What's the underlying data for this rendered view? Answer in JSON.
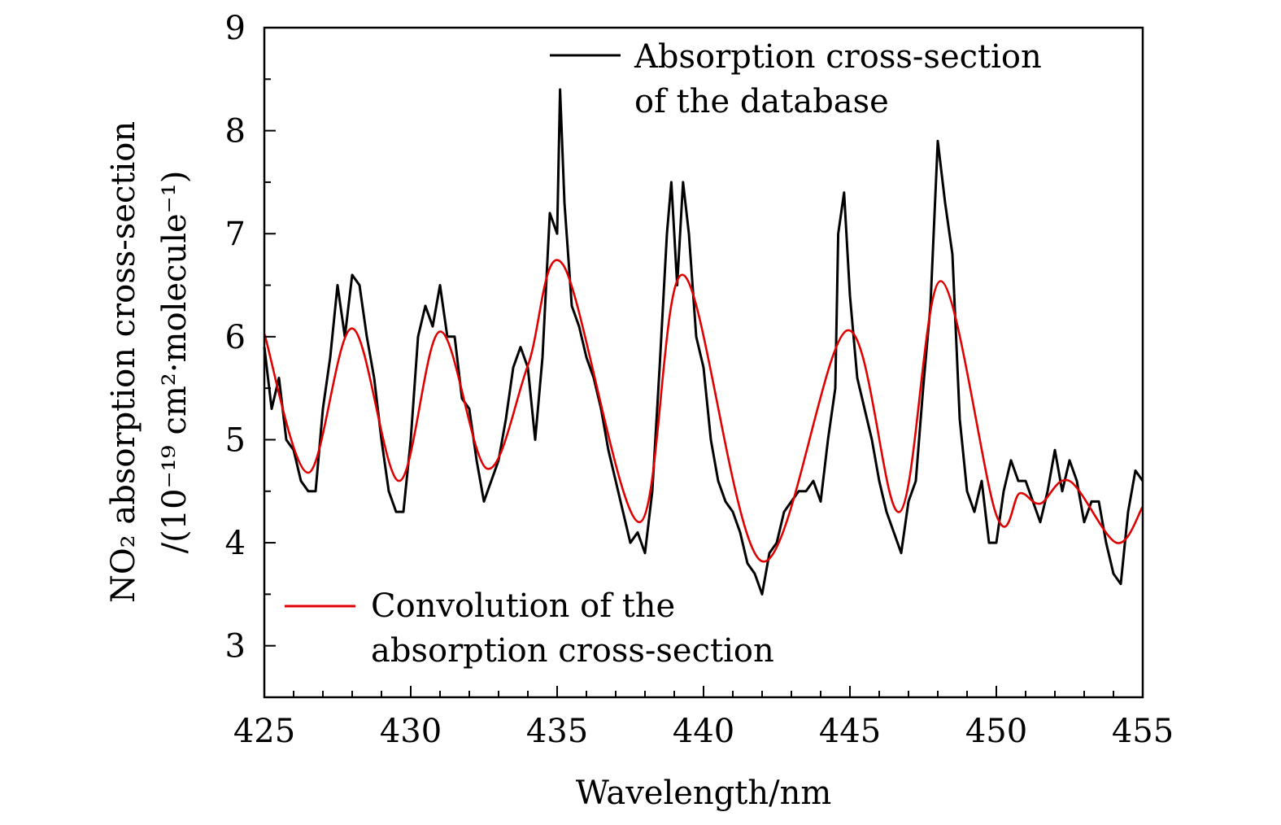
{
  "chart_data": {
    "type": "line",
    "xlabel": "Wavelength/nm",
    "ylabel_line1": "NO₂ absorption cross-section",
    "ylabel_line2": "/(10⁻¹⁹ cm²·molecule⁻¹)",
    "xlim": [
      425,
      455
    ],
    "ylim": [
      2.5,
      9
    ],
    "xticks": [
      "425",
      "430",
      "435",
      "440",
      "445",
      "450",
      "455"
    ],
    "yticks": [
      "3",
      "4",
      "5",
      "6",
      "7",
      "8",
      "9"
    ],
    "grid": false,
    "legend": [
      {
        "series": 0,
        "line1": "Absorption cross-section",
        "line2": "of the database",
        "placement": "top-right"
      },
      {
        "series": 1,
        "line1": "Convolution of the",
        "line2": "absorption cross-section",
        "placement": "bottom-left"
      }
    ],
    "series": [
      {
        "color": "#000000",
        "x": [
          425,
          425.25,
          425.5,
          425.75,
          426,
          426.25,
          426.5,
          426.75,
          427,
          427.25,
          427.5,
          427.75,
          428,
          428.25,
          428.5,
          428.75,
          429,
          429.25,
          429.5,
          429.75,
          430,
          430.25,
          430.5,
          430.75,
          431,
          431.25,
          431.5,
          431.75,
          432,
          432.25,
          432.5,
          432.75,
          433,
          433.25,
          433.5,
          433.75,
          434,
          434.25,
          434.5,
          434.75,
          435,
          435.1,
          435.25,
          435.5,
          435.75,
          436,
          436.25,
          436.5,
          436.75,
          437,
          437.25,
          437.5,
          437.75,
          438,
          438.25,
          438.5,
          438.75,
          438.9,
          439.1,
          439.3,
          439.5,
          439.75,
          440,
          440.25,
          440.5,
          440.75,
          441,
          441.25,
          441.5,
          441.75,
          442,
          442.25,
          442.5,
          442.75,
          443,
          443.25,
          443.5,
          443.75,
          444,
          444.25,
          444.5,
          444.6,
          444.8,
          445,
          445.25,
          445.5,
          445.75,
          446,
          446.25,
          446.5,
          446.75,
          447,
          447.25,
          447.5,
          447.75,
          448,
          448.25,
          448.5,
          448.75,
          449,
          449.25,
          449.5,
          449.75,
          450,
          450.25,
          450.5,
          450.75,
          451,
          451.25,
          451.5,
          451.75,
          452,
          452.25,
          452.5,
          452.75,
          453,
          453.25,
          453.5,
          453.75,
          454,
          454.25,
          454.5,
          454.75,
          455
        ],
        "y": [
          5.9,
          5.3,
          5.6,
          5.0,
          4.9,
          4.6,
          4.5,
          4.5,
          5.3,
          5.8,
          6.5,
          6.0,
          6.6,
          6.5,
          6.0,
          5.6,
          5.0,
          4.5,
          4.3,
          4.3,
          5.0,
          6.0,
          6.3,
          6.1,
          6.5,
          6.0,
          6.0,
          5.4,
          5.3,
          4.8,
          4.4,
          4.6,
          4.8,
          5.2,
          5.7,
          5.9,
          5.7,
          5.0,
          5.8,
          7.2,
          7.0,
          8.4,
          7.3,
          6.3,
          6.1,
          5.8,
          5.6,
          5.3,
          4.9,
          4.6,
          4.3,
          4.0,
          4.1,
          3.9,
          4.5,
          5.7,
          7.0,
          7.5,
          6.5,
          7.5,
          7.0,
          6.0,
          5.7,
          5.0,
          4.6,
          4.4,
          4.3,
          4.1,
          3.8,
          3.7,
          3.5,
          3.9,
          4.0,
          4.3,
          4.4,
          4.5,
          4.5,
          4.6,
          4.4,
          5.0,
          5.5,
          7.0,
          7.4,
          6.4,
          5.6,
          5.3,
          5.0,
          4.6,
          4.3,
          4.1,
          3.9,
          4.4,
          4.6,
          5.5,
          6.3,
          7.9,
          7.3,
          6.8,
          5.2,
          4.5,
          4.3,
          4.6,
          4.0,
          4.0,
          4.5,
          4.8,
          4.6,
          4.6,
          4.4,
          4.2,
          4.5,
          4.9,
          4.5,
          4.8,
          4.6,
          4.2,
          4.4,
          4.4,
          4.0,
          3.7,
          3.6,
          4.3,
          4.7,
          4.6
        ]
      },
      {
        "color": "#e00000",
        "x": [
          425,
          426.5,
          428.0,
          429.6,
          431.0,
          432.6,
          434.0,
          435.2,
          437.8,
          439.3,
          442.0,
          444.9,
          446.7,
          448.1,
          450.0,
          450.8,
          451.5,
          452.5,
          454.1,
          455
        ],
        "y": [
          6.03,
          4.68,
          6.08,
          4.6,
          6.05,
          4.72,
          5.72,
          6.7,
          4.2,
          6.6,
          3.82,
          6.06,
          4.3,
          6.54,
          4.27,
          4.48,
          4.38,
          4.6,
          4.0,
          4.35
        ]
      }
    ]
  }
}
